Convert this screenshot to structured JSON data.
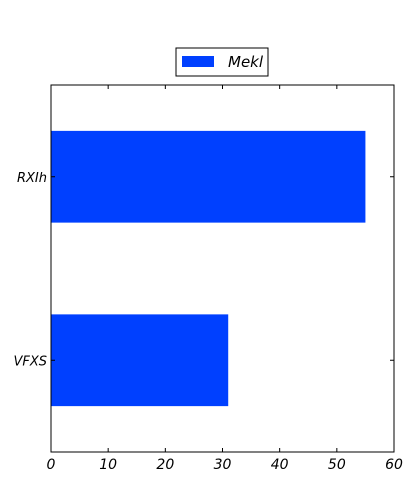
{
  "chart_data": {
    "type": "bar",
    "orientation": "horizontal",
    "categories": [
      "VFXS",
      "RXIh"
    ],
    "series": [
      {
        "name": "Mekl",
        "values": [
          31,
          55
        ],
        "color": "#0040ff"
      }
    ],
    "xlim": [
      0,
      60
    ],
    "xticks": [
      "0",
      "10",
      "20",
      "30",
      "40",
      "50",
      "60"
    ],
    "grid": false,
    "legend_position": "top-center"
  }
}
